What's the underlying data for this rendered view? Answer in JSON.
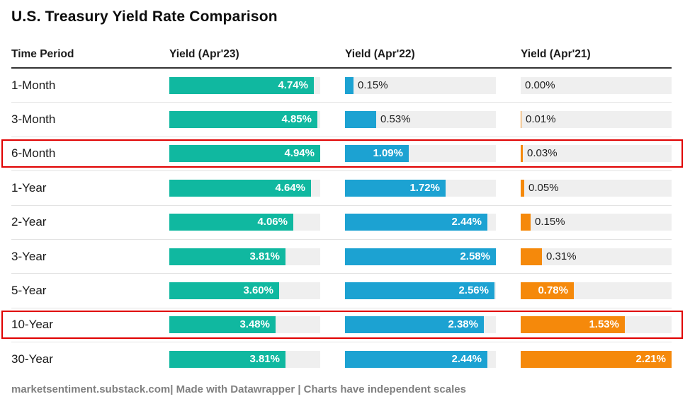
{
  "title": "U.S. Treasury Yield Rate Comparison",
  "footer": "marketsentiment.substack.com| Made with Datawrapper | Charts have independent scales",
  "colors": {
    "apr23_bar": "#10b8a0",
    "apr22_bar": "#1ca2d2",
    "apr21_bar": "#f5890b",
    "track_background": "#efefef",
    "highlight_border": "#e00000",
    "header_rule": "#333333",
    "row_separator": "#e3e3e3",
    "footer_text": "#808080"
  },
  "chart_data": {
    "type": "bar",
    "title": "U.S. Treasury Yield Rate Comparison",
    "columns": [
      "Time Period",
      "Yield (Apr'23)",
      "Yield (Apr'22)",
      "Yield (Apr'21)"
    ],
    "categories": [
      "1-Month",
      "3-Month",
      "6-Month",
      "1-Year",
      "2-Year",
      "3-Year",
      "5-Year",
      "10-Year",
      "30-Year"
    ],
    "series": [
      {
        "name": "Yield (Apr'23)",
        "color": "#10b8a0",
        "axis_max": 4.94,
        "values": [
          4.74,
          4.85,
          4.94,
          4.64,
          4.06,
          3.81,
          3.6,
          3.48,
          3.81
        ]
      },
      {
        "name": "Yield (Apr'22)",
        "color": "#1ca2d2",
        "axis_max": 2.58,
        "values": [
          0.15,
          0.53,
          1.09,
          1.72,
          2.44,
          2.58,
          2.56,
          2.38,
          2.44
        ]
      },
      {
        "name": "Yield (Apr'21)",
        "color": "#f5890b",
        "axis_max": 2.21,
        "values": [
          0.0,
          0.01,
          0.03,
          0.05,
          0.15,
          0.31,
          0.78,
          1.53,
          2.21
        ]
      }
    ],
    "value_suffix": "%",
    "highlighted_rows": [
      "6-Month",
      "10-Year"
    ],
    "legend_position": "none",
    "grid": false,
    "notes": "Charts have independent scales"
  }
}
